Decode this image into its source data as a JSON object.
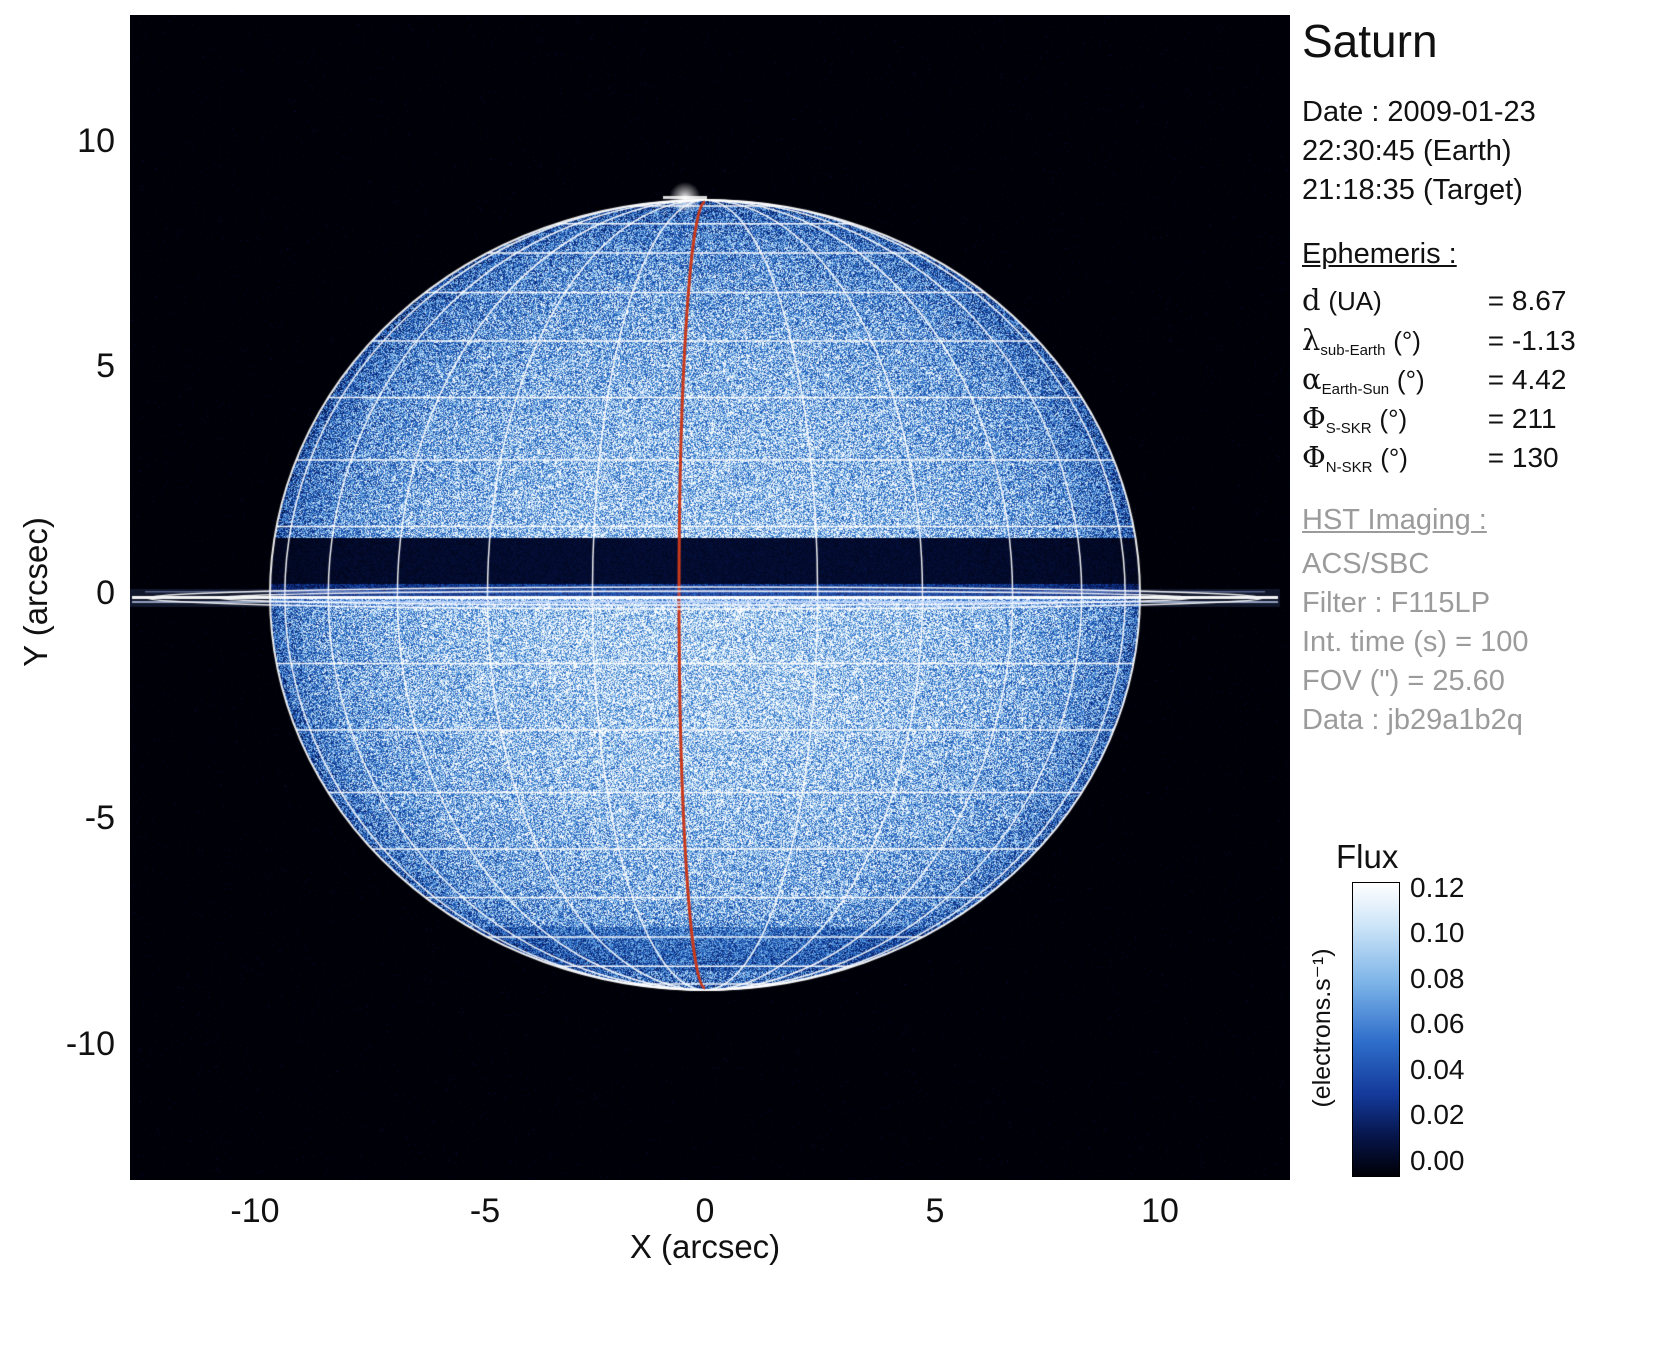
{
  "title": "Saturn",
  "date_block": {
    "lines": [
      "Date : 2009-01-23",
      "22:30:45 (Earth)",
      "21:18:35 (Target)"
    ]
  },
  "ephemeris": {
    "heading": "Ephemeris :",
    "rows": [
      {
        "sym": "d",
        "sub": "",
        "unit": "(UA)",
        "val": "= 8.67"
      },
      {
        "sym": "λ",
        "sub": "sub-Earth",
        "unit": "(°)",
        "val": "= -1.13"
      },
      {
        "sym": "α",
        "sub": "Earth-Sun",
        "unit": "(°)",
        "val": "= 4.42"
      },
      {
        "sym": "Φ",
        "sub": "S-SKR",
        "unit": "(°)",
        "val": "= 211"
      },
      {
        "sym": "Φ",
        "sub": "N-SKR",
        "unit": "(°)",
        "val": "= 130"
      }
    ]
  },
  "hst": {
    "heading": "HST Imaging :",
    "lines": [
      "ACS/SBC",
      "Filter : F115LP",
      "Int. time (s) = 100",
      "FOV (\") = 25.60",
      "Data : jb29a1b2q"
    ]
  },
  "axes": {
    "x": {
      "label": "X (arcsec)",
      "ticks": [
        "-10",
        "-5",
        "0",
        "5",
        "10"
      ]
    },
    "y": {
      "label": "Y (arcsec)",
      "ticks": [
        "10",
        "5",
        "0",
        "-5",
        "-10"
      ]
    }
  },
  "colorbar": {
    "title": "Flux",
    "unit": "(electrons.s⁻¹)",
    "ticks": [
      "0.12",
      "0.10",
      "0.08",
      "0.06",
      "0.04",
      "0.02",
      "0.00"
    ]
  },
  "colors": {
    "background": "#000000",
    "grid": "#ffffff",
    "meridian_red": "#c8391c",
    "colormap": [
      "#000008",
      "#081e6e",
      "#1e5fbe",
      "#6eaae1",
      "#bedcf5",
      "#ffffff"
    ]
  },
  "chart_data": {
    "type": "heatmap",
    "title": "Saturn",
    "xlabel": "X (arcsec)",
    "ylabel": "Y (arcsec)",
    "xlim": [
      -12.6,
      12.8
    ],
    "ylim": [
      -12.8,
      12.7
    ],
    "x_ticks": [
      -10,
      -5,
      0,
      5,
      10
    ],
    "y_ticks": [
      10,
      5,
      0,
      -5,
      -10
    ],
    "flux_range": [
      0.0,
      0.12
    ],
    "flux_ticks": [
      0.12,
      0.1,
      0.08,
      0.06,
      0.04,
      0.02,
      0.0
    ],
    "flux_unit": "electrons.s⁻¹",
    "date_earth": "2009-01-23 22:30:45",
    "date_target": "2009-01-23 21:18:35",
    "ephemeris": {
      "d_UA": 8.67,
      "lambda_sub_earth_deg": -1.13,
      "alpha_earth_sun_deg": 4.42,
      "phi_S_SKR_deg": 211,
      "phi_N_SKR_deg": 130
    },
    "instrument": {
      "telescope": "HST",
      "camera": "ACS/SBC",
      "filter": "F115LP",
      "int_time_s": 100,
      "fov_arcsec": 25.6,
      "data_id": "jb29a1b2q"
    },
    "features": {
      "planet_equatorial_radius_arcsec": 9.5,
      "planet_polar_radius_arcsec": 8.7,
      "rings_extent_arcsec": 12.5,
      "rings_orientation": "edge-on",
      "equatorial_dark_band": "ring shadow just north of equator",
      "grid_overlay": "planet latitude-longitude grid in white, central meridian drawn in red",
      "colormap": "black - blue - white flux scale"
    }
  }
}
